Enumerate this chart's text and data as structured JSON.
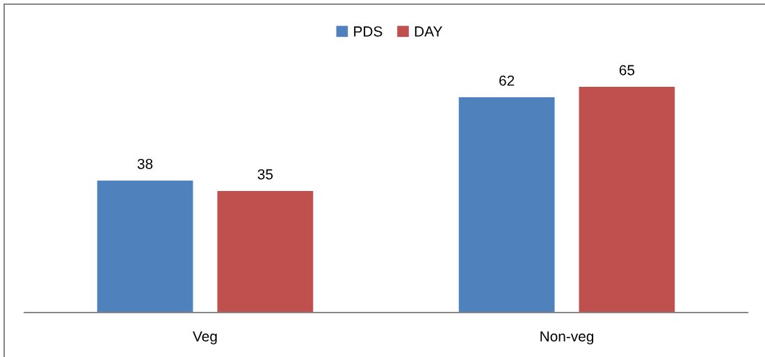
{
  "chart_data": {
    "type": "bar",
    "categories": [
      "Veg",
      "Non-veg"
    ],
    "series": [
      {
        "name": "PDS",
        "color": "#4f81bd",
        "values": [
          38,
          62
        ]
      },
      {
        "name": "DAY",
        "color": "#c0504d",
        "values": [
          35,
          65
        ]
      }
    ],
    "data_labels": true,
    "legend": "top",
    "tick_labels": "x"
  }
}
